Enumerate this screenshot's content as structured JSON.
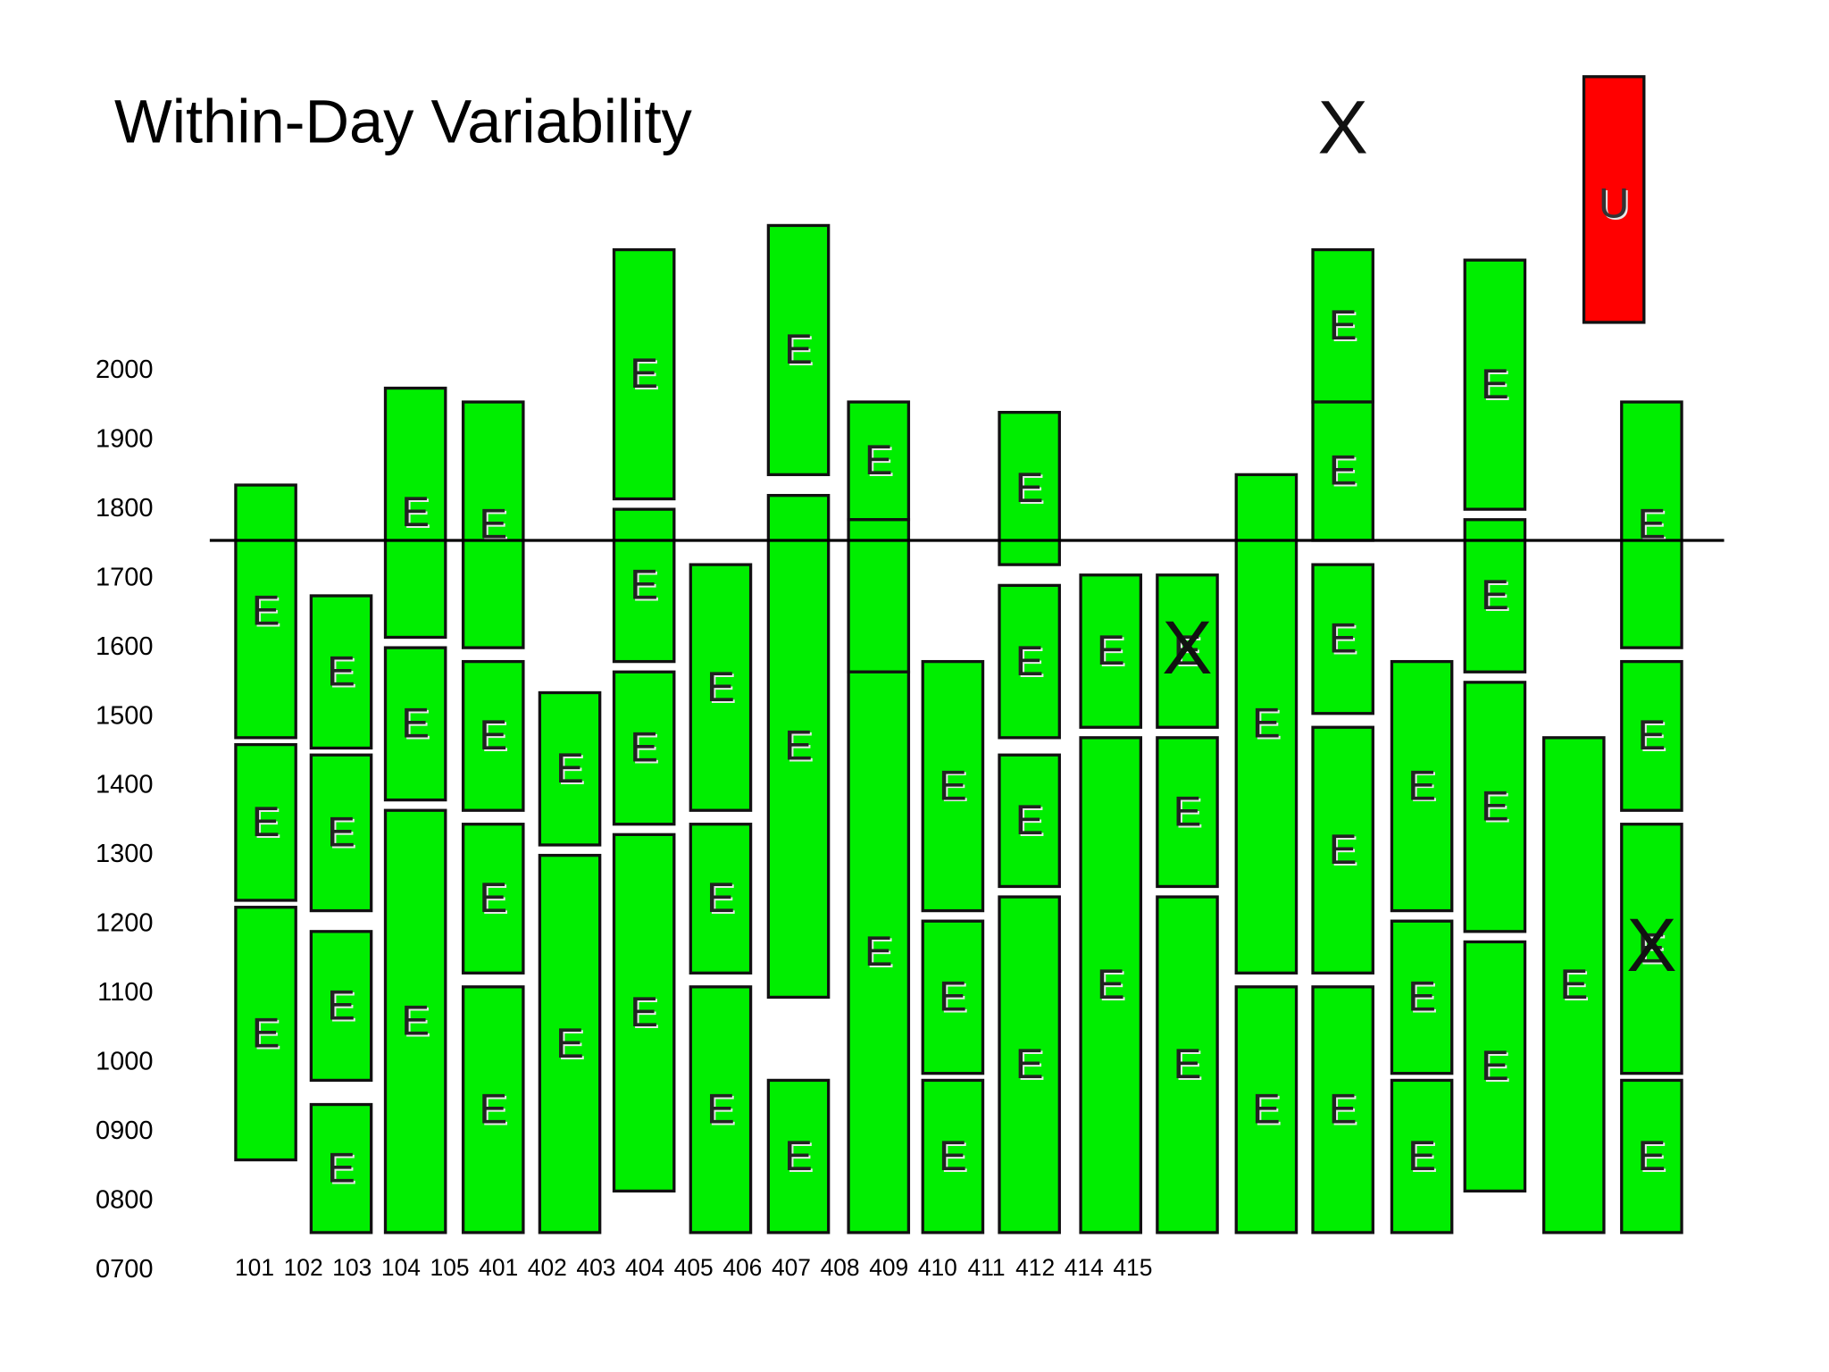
{
  "chart_data": {
    "type": "range",
    "title": "Within-Day Variability",
    "ylim": [
      700,
      2500
    ],
    "yticks": [
      {
        "value": 700,
        "label": "0700"
      },
      {
        "value": 800,
        "label": "0800"
      },
      {
        "value": 900,
        "label": "0900"
      },
      1000,
      1100,
      1200,
      1300,
      1400,
      1500,
      1600,
      1700,
      1800,
      1900,
      2000
    ],
    "reference_line": 1755,
    "categories": [
      "101",
      "102",
      "103",
      "104",
      "105",
      "401",
      "402",
      "403",
      "404",
      "405",
      "406",
      "407",
      "408",
      "409",
      "410",
      "411",
      "412",
      "414",
      "415"
    ],
    "color": "#00ee00",
    "columns": [
      {
        "blocks": [
          {
            "start": 1470,
            "end": 1835,
            "label": "E"
          },
          {
            "start": 1235,
            "end": 1460,
            "label": "E"
          },
          {
            "start": 860,
            "end": 1225,
            "label": "E"
          }
        ]
      },
      {
        "blocks": [
          {
            "start": 1455,
            "end": 1675,
            "label": "E"
          },
          {
            "start": 1220,
            "end": 1445,
            "label": "E"
          },
          {
            "start": 975,
            "end": 1190,
            "label": "E"
          },
          {
            "start": 755,
            "end": 940,
            "label": "E"
          }
        ]
      },
      {
        "blocks": [
          {
            "start": 1615,
            "end": 1975,
            "label": "E"
          },
          {
            "start": 1380,
            "end": 1600,
            "label": "E"
          },
          {
            "start": 755,
            "end": 1365,
            "label": "E"
          }
        ]
      },
      {
        "blocks": [
          {
            "start": 1600,
            "end": 1955,
            "label": "E"
          },
          {
            "start": 1365,
            "end": 1580,
            "label": "E"
          },
          {
            "start": 1130,
            "end": 1345,
            "label": "E"
          },
          {
            "start": 755,
            "end": 1110,
            "label": "E"
          }
        ]
      },
      {
        "blocks": [
          {
            "start": 1315,
            "end": 1535,
            "label": "E"
          },
          {
            "start": 755,
            "end": 1300,
            "label": "E"
          }
        ]
      },
      {
        "blocks": [
          {
            "start": 1815,
            "end": 2175,
            "label": "E"
          },
          {
            "start": 1580,
            "end": 1800,
            "label": "E"
          },
          {
            "start": 1345,
            "end": 1565,
            "label": "E"
          },
          {
            "start": 815,
            "end": 1330,
            "label": "E"
          }
        ]
      },
      {
        "blocks": [
          {
            "start": 1365,
            "end": 1720,
            "label": "E"
          },
          {
            "start": 1130,
            "end": 1345,
            "label": "E"
          },
          {
            "start": 755,
            "end": 1110,
            "label": "E"
          }
        ]
      },
      {
        "blocks": [
          {
            "start": 1850,
            "end": 2210,
            "label": "E"
          },
          {
            "start": 1095,
            "end": 1820,
            "label": "E"
          },
          {
            "start": 755,
            "end": 975,
            "label": "E"
          }
        ]
      },
      {
        "blocks": [
          {
            "start": 1785,
            "end": 1955,
            "label": "E"
          },
          {
            "start": 1565,
            "end": 1785
          },
          {
            "start": 755,
            "end": 1565,
            "label": "E"
          }
        ]
      },
      {
        "blocks": [
          {
            "start": 1220,
            "end": 1580,
            "label": "E"
          },
          {
            "start": 985,
            "end": 1205,
            "label": "E"
          },
          {
            "start": 755,
            "end": 975,
            "label": "E"
          }
        ]
      },
      {
        "blocks": [
          {
            "start": 1720,
            "end": 1940,
            "label": "E"
          },
          {
            "start": 1470,
            "end": 1690,
            "label": "E"
          },
          {
            "start": 1255,
            "end": 1445,
            "label": "E"
          },
          {
            "start": 755,
            "end": 1240,
            "label": "E"
          }
        ]
      },
      {
        "blocks": [
          {
            "start": 1485,
            "end": 1705,
            "label": "E"
          },
          {
            "start": 755,
            "end": 1470,
            "label": "E"
          }
        ]
      },
      {
        "blocks": [
          {
            "start": 1485,
            "end": 1705,
            "label": "E",
            "marker": "X"
          },
          {
            "start": 1255,
            "end": 1470,
            "label": "E"
          },
          {
            "start": 755,
            "end": 1240,
            "label": "E"
          }
        ]
      },
      {
        "blocks": [
          {
            "start": 1130,
            "end": 1850,
            "label": "E"
          },
          {
            "start": 755,
            "end": 1110,
            "label": "E"
          }
        ]
      },
      {
        "marker": "X",
        "blocks": [
          {
            "start": 1955,
            "end": 2175,
            "label": "E"
          },
          {
            "start": 1755,
            "end": 1955,
            "label": "E"
          },
          {
            "start": 1505,
            "end": 1720,
            "label": "E"
          },
          {
            "start": 1130,
            "end": 1485,
            "label": "E"
          },
          {
            "start": 755,
            "end": 1110,
            "label": "E"
          }
        ]
      },
      {
        "blocks": [
          {
            "start": 1220,
            "end": 1580,
            "label": "E"
          },
          {
            "start": 985,
            "end": 1205,
            "label": "E"
          },
          {
            "start": 755,
            "end": 975,
            "label": "E"
          }
        ]
      },
      {
        "blocks": [
          {
            "start": 1800,
            "end": 2160,
            "label": "E"
          },
          {
            "start": 1565,
            "end": 1785,
            "label": "E"
          },
          {
            "start": 1190,
            "end": 1550,
            "label": "E"
          },
          {
            "start": 815,
            "end": 1175,
            "label": "E"
          }
        ]
      },
      {
        "blocks": [
          {
            "start": 755,
            "end": 1470,
            "label": "E"
          }
        ]
      },
      {
        "blocks": [
          {
            "start": 1600,
            "end": 1955,
            "label": "E"
          },
          {
            "start": 1365,
            "end": 1580,
            "label": "E"
          },
          {
            "start": 985,
            "end": 1345,
            "label": "E",
            "marker": "X"
          },
          {
            "start": 755,
            "end": 975,
            "label": "E"
          }
        ]
      }
    ],
    "alerts": [
      {
        "start": 2070,
        "end": 2425,
        "label": "U",
        "color": "#ff0000"
      }
    ]
  }
}
